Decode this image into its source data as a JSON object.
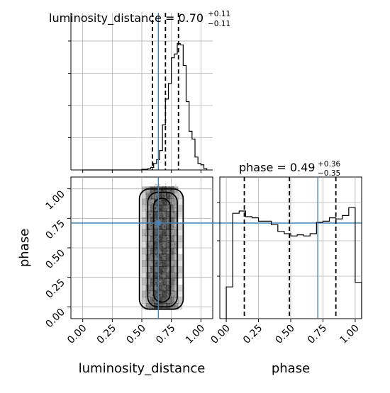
{
  "chart_data": [
    {
      "type": "histogram",
      "panel": "luminosity_distance marginal",
      "title_param": "luminosity_distance",
      "title_value": "0.70",
      "title_plus": "+0.11",
      "title_minus": "−0.11",
      "xlim": [
        -0.1,
        1.1
      ],
      "bins_x": [
        0.0,
        0.025,
        0.05,
        0.075,
        0.1,
        0.125,
        0.15,
        0.175,
        0.2,
        0.225,
        0.25,
        0.275,
        0.3,
        0.325,
        0.35,
        0.375,
        0.4,
        0.425,
        0.45,
        0.475,
        0.5,
        0.525,
        0.55,
        0.575,
        0.6,
        0.625,
        0.65,
        0.675,
        0.7,
        0.725,
        0.75,
        0.775,
        0.8,
        0.825,
        0.85,
        0.875,
        0.9,
        0.925,
        0.95,
        0.975,
        1.0,
        1.025,
        1.05
      ],
      "heights": [
        0,
        0,
        0,
        0,
        0,
        0,
        0,
        0,
        0,
        0,
        0,
        0.005,
        0.005,
        0.01,
        0.02,
        0.05,
        0.08,
        0.15,
        0.35,
        0.55,
        0.67,
        0.87,
        0.9,
        0.98,
        0.97,
        0.81,
        0.53,
        0.3,
        0.24,
        0.1,
        0.05,
        0.04,
        0.01
      ],
      "bins_start": 0.225,
      "bin_width": 0.025,
      "quantile_lines": [
        0.59,
        0.7,
        0.81
      ],
      "truth": 0.64
    },
    {
      "type": "scatter",
      "panel": "2D density luminosity_distance vs phase",
      "xlabel": "luminosity_distance",
      "ylabel": "phase",
      "xlim": [
        -0.1,
        1.1
      ],
      "ylim": [
        -0.1,
        1.1
      ],
      "xticks": [
        "0.00",
        "0.25",
        "0.50",
        "0.75",
        "1.00"
      ],
      "yticks": [
        "0.00",
        "0.25",
        "0.50",
        "0.75",
        "1.00"
      ],
      "xtick_values": [
        0,
        0.25,
        0.5,
        0.75,
        1.0
      ],
      "ytick_values": [
        0,
        0.25,
        0.5,
        0.75,
        1.0
      ],
      "truth": {
        "x": 0.64,
        "y": 0.71
      },
      "density_x_range": [
        0.5,
        0.92
      ],
      "density_y_range": [
        -0.05,
        1.03
      ],
      "contours": [
        {
          "level": "outer",
          "x0": 0.48,
          "x1": 0.85,
          "y0": -0.02,
          "y1": 1.0
        },
        {
          "level": "mid",
          "x0": 0.55,
          "x1": 0.8,
          "y0": 0.0,
          "y1": 0.97
        },
        {
          "level": "inner",
          "x0": 0.6,
          "x1": 0.74,
          "y0": 0.04,
          "y1": 0.92
        }
      ]
    },
    {
      "type": "histogram",
      "panel": "phase marginal",
      "title_param": "phase",
      "title_value": "0.49",
      "title_plus": "+0.36",
      "title_minus": "−0.35",
      "xlim": [
        -0.05,
        1.05
      ],
      "bins_start": 0.0,
      "bin_width": 0.05,
      "heights": [
        0.28,
        0.93,
        0.95,
        0.9,
        0.89,
        0.86,
        0.86,
        0.83,
        0.77,
        0.75,
        0.73,
        0.74,
        0.73,
        0.75,
        0.85,
        0.86,
        0.89,
        0.88,
        0.91,
        0.98,
        0.32
      ],
      "quantile_lines": [
        0.14,
        0.49,
        0.85
      ],
      "truth": 0.71,
      "xlabel": "phase",
      "xticks": [
        "0.00",
        "0.25",
        "0.50",
        "0.75",
        "1.00"
      ],
      "xtick_values": [
        0,
        0.25,
        0.5,
        0.75,
        1.0
      ]
    }
  ],
  "colors": {
    "truth": "#4682b4",
    "hist_line": "#000000",
    "grid": "#b0b0b0",
    "density": "#000000"
  }
}
